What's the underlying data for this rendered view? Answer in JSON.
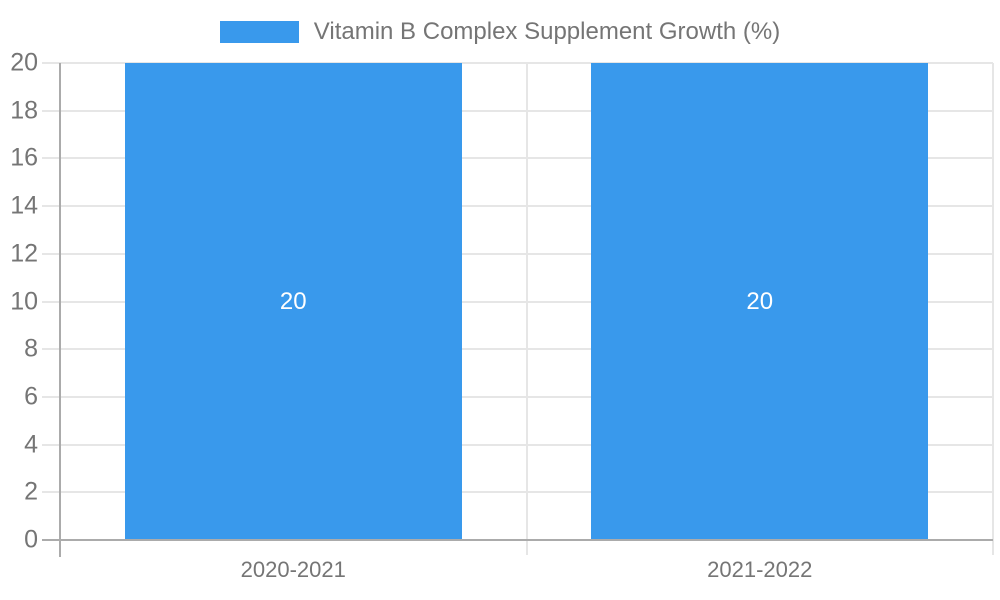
{
  "chart_data": {
    "type": "bar",
    "title": "Vitamin B Complex Supplement Growth (%)",
    "legend": {
      "position": "top-center"
    },
    "categories": [
      "2020-2021",
      "2021-2022"
    ],
    "series": [
      {
        "name": "Vitamin B Complex Supplement Growth (%)",
        "values": [
          20,
          20
        ],
        "data_labels": [
          "20",
          "20"
        ]
      }
    ],
    "xlabel": "",
    "ylabel": "",
    "ylim": [
      0,
      20
    ],
    "y_ticks": [
      0,
      2,
      4,
      6,
      8,
      10,
      12,
      14,
      16,
      18,
      20
    ],
    "grid": true,
    "colors": {
      "background": "#FFFFFF",
      "bar": "#3999EC",
      "grid": "#E6E6E6",
      "axis": "#ABABAB",
      "text": "#757575",
      "data_label": "#FFFFFF"
    }
  }
}
